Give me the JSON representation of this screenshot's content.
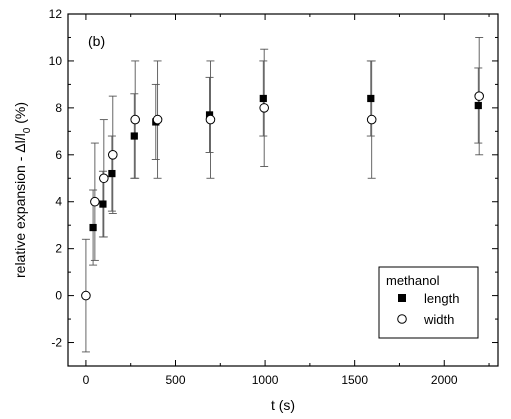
{
  "chart_data": {
    "type": "scatter",
    "panel_label": "(b)",
    "xlabel": "t (s)",
    "ylabel": "relative expansion - Δl/l0 (%)",
    "ylabel_parts": [
      "relative expansion - Δl/l",
      "0",
      " (%)"
    ],
    "xlim": [
      -100,
      2300
    ],
    "ylim": [
      -3,
      12
    ],
    "xticks": [
      0,
      500,
      1000,
      1500,
      2000
    ],
    "xtick_labels": [
      "0",
      "500",
      "1000",
      "1500",
      "2000"
    ],
    "yticks": [
      -2,
      0,
      2,
      4,
      6,
      8,
      10,
      12
    ],
    "ytick_labels": [
      "-2",
      "0",
      "2",
      "4",
      "6",
      "8",
      "10",
      "12"
    ],
    "grid": false,
    "legend": {
      "title": "methanol",
      "placement": "bottom-right"
    },
    "series": [
      {
        "name": "length",
        "marker": "filled-square",
        "x": [
          40,
          95,
          145,
          270,
          390,
          690,
          990,
          1590,
          2190
        ],
        "y": [
          2.9,
          3.9,
          5.2,
          6.8,
          7.4,
          7.7,
          8.4,
          8.4,
          8.1
        ],
        "err_low": [
          1.6,
          1.4,
          1.6,
          1.8,
          1.6,
          1.6,
          1.6,
          1.6,
          1.6
        ],
        "err_high": [
          1.6,
          1.4,
          1.6,
          1.8,
          1.6,
          1.6,
          1.6,
          1.6,
          1.6
        ]
      },
      {
        "name": "width",
        "marker": "open-circle",
        "x": [
          0,
          50,
          100,
          150,
          275,
          400,
          695,
          995,
          1595,
          2195
        ],
        "y": [
          0,
          4.0,
          5.0,
          6.0,
          7.5,
          7.5,
          7.5,
          8.0,
          7.5,
          8.5
        ],
        "err_low": [
          2.4,
          2.5,
          2.5,
          2.5,
          2.5,
          2.5,
          2.5,
          2.5,
          2.5,
          2.5
        ],
        "err_high": [
          2.4,
          2.5,
          2.5,
          2.5,
          2.5,
          2.5,
          2.5,
          2.5,
          2.5,
          2.5
        ]
      }
    ]
  }
}
